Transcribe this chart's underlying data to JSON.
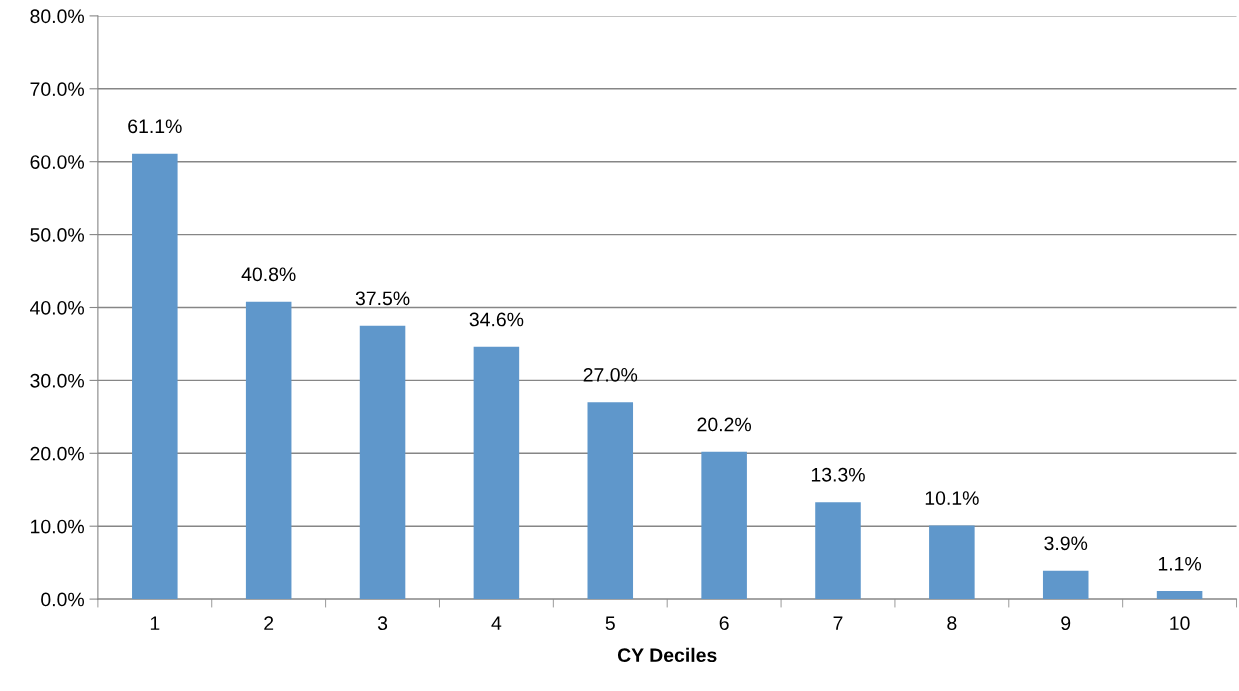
{
  "chart_data": {
    "type": "bar",
    "xlabel": "CY Deciles",
    "categories": [
      "1",
      "2",
      "3",
      "4",
      "5",
      "6",
      "7",
      "8",
      "9",
      "10"
    ],
    "values": [
      61.1,
      40.8,
      37.5,
      34.6,
      27.0,
      20.2,
      13.3,
      10.1,
      3.9,
      1.1
    ],
    "value_labels": [
      "61.1%",
      "40.8%",
      "37.5%",
      "34.6%",
      "27.0%",
      "20.2%",
      "13.3%",
      "10.1%",
      "3.9%",
      "1.1%"
    ],
    "color": "#5f97cb",
    "ylim": [
      0,
      80
    ],
    "yticks": [
      {
        "value": 0,
        "label": "0.0%"
      },
      {
        "value": 10,
        "label": "10.0%"
      },
      {
        "value": 20,
        "label": "20.0%"
      },
      {
        "value": 30,
        "label": "30.0%"
      },
      {
        "value": 40,
        "label": "40.0%"
      },
      {
        "value": 50,
        "label": "50.0%"
      },
      {
        "value": 60,
        "label": "60.0%"
      },
      {
        "value": 70,
        "label": "70.0%"
      },
      {
        "value": 80,
        "label": "80.0%"
      }
    ],
    "grid": "y",
    "legend": false
  }
}
